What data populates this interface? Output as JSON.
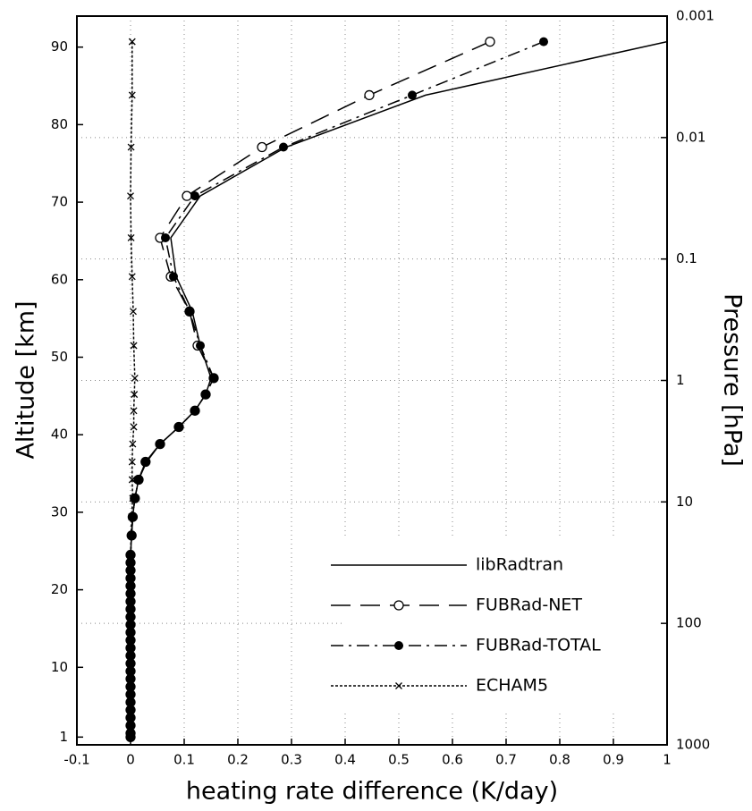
{
  "chart_data": {
    "type": "line",
    "orientation": "vertical",
    "xlabel": "heating rate difference (K/day)",
    "ylabel": "Altitude [km]",
    "y2label": "Pressure [hPa]",
    "xlim": [
      -0.1,
      1
    ],
    "xticks": [
      -0.1,
      0,
      0.1,
      0.2,
      0.3,
      0.4,
      0.5,
      0.6,
      0.7,
      0.8,
      0.9,
      1
    ],
    "ylim": [
      0,
      94
    ],
    "yticks": [
      1,
      10,
      20,
      30,
      40,
      50,
      60,
      70,
      80,
      90
    ],
    "y2lim": [
      1000,
      0.001
    ],
    "y2ticks": [
      1000,
      100,
      10,
      1,
      0.1,
      0.01,
      0.001
    ],
    "y2scale": "log",
    "grid": true,
    "legend": "lower right",
    "altitude": [
      90.7,
      83.8,
      77.1,
      70.8,
      65.4,
      60.4,
      55.9,
      51.5,
      47.3,
      45.2,
      43.1,
      41.0,
      38.8,
      36.5,
      34.2,
      31.8,
      29.4,
      27.0,
      24.5,
      23.5,
      22.5,
      21.5,
      20.5,
      19.5,
      18.5,
      17.5,
      16.5,
      15.5,
      14.5,
      13.5,
      12.5,
      11.5,
      10.5,
      9.5,
      8.5,
      7.5,
      6.5,
      5.5,
      4.5,
      3.5,
      2.5,
      1.5,
      1
    ],
    "series": [
      {
        "name": "libRadtran",
        "color": "#000000",
        "linestyle": "solid",
        "marker": "none",
        "values": [
          1.0,
          0.55,
          0.29,
          0.13,
          0.075,
          0.085,
          0.115,
          0.13,
          0.15,
          0.14,
          0.12,
          0.09,
          0.055,
          0.03,
          0.015,
          0.008,
          0.004,
          0.002,
          0,
          0,
          0,
          0,
          0,
          0,
          0,
          0,
          0,
          0,
          0,
          0,
          0,
          0,
          0,
          0,
          0,
          0,
          0,
          0,
          0,
          0,
          0,
          0,
          0
        ]
      },
      {
        "name": "FUBRad-NET",
        "color": "#000000",
        "linestyle": "dashed",
        "marker": "open-circle",
        "values": [
          0.67,
          0.445,
          0.245,
          0.105,
          0.055,
          0.075,
          0.11,
          0.125,
          0.155,
          0.14,
          0.12,
          0.09,
          0.055,
          0.028,
          0.015,
          0.008,
          0.004,
          0.002,
          0,
          0,
          0,
          0,
          0,
          0,
          0,
          0,
          0,
          0,
          0,
          0,
          0,
          0,
          0,
          0,
          0,
          0,
          0,
          0,
          0,
          0,
          0,
          0,
          0
        ]
      },
      {
        "name": "FUBRad-TOTAL",
        "color": "#000000",
        "linestyle": "dashdot",
        "marker": "filled-circle",
        "values": [
          0.77,
          0.525,
          0.285,
          0.12,
          0.065,
          0.08,
          0.11,
          0.13,
          0.155,
          0.14,
          0.12,
          0.09,
          0.055,
          0.028,
          0.015,
          0.008,
          0.004,
          0.002,
          0,
          0,
          0,
          0,
          0,
          0,
          0,
          0,
          0,
          0,
          0,
          0,
          0,
          0,
          0,
          0,
          0,
          0,
          0,
          0,
          0,
          0,
          0,
          0,
          0
        ]
      },
      {
        "name": "ECHAM5",
        "color": "#000000",
        "linestyle": "dotted",
        "marker": "x",
        "values": [
          0.003,
          0.003,
          0.001,
          0,
          0.001,
          0.003,
          0.005,
          0.006,
          0.008,
          0.007,
          0.006,
          0.006,
          0.004,
          0.003,
          0.003,
          0.004,
          0.002,
          0.001,
          0,
          0,
          0,
          0,
          0,
          0,
          0,
          0,
          0,
          0,
          0,
          0,
          0,
          0,
          0,
          0,
          0,
          0,
          0,
          0,
          0,
          0,
          0,
          0,
          0
        ]
      }
    ]
  }
}
